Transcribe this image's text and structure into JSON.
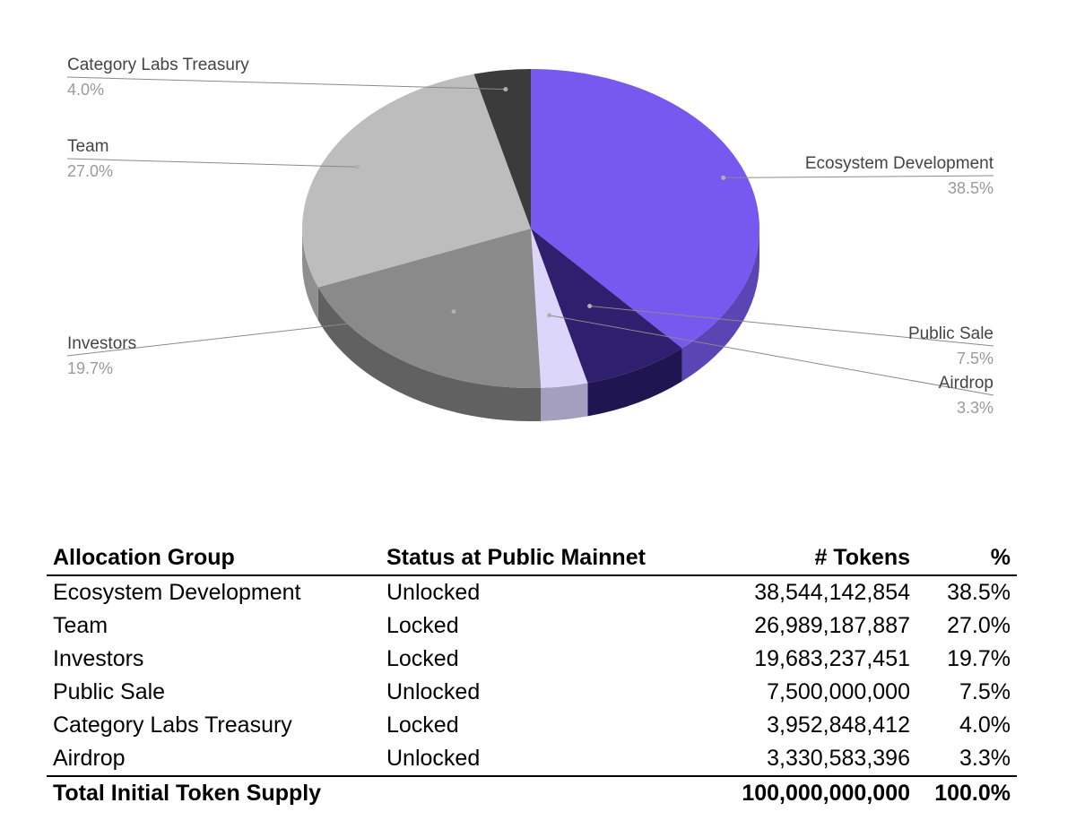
{
  "chart_data": {
    "type": "pie",
    "title": "",
    "unit": "%",
    "slices": [
      {
        "label": "Ecosystem Development",
        "value": 38.5,
        "value_label": "38.5%",
        "color": "#7859ef",
        "side_color": "#5b44b4"
      },
      {
        "label": "Public Sale",
        "value": 7.5,
        "value_label": "7.5%",
        "color": "#2f1f6e",
        "side_color": "#1f1550"
      },
      {
        "label": "Airdrop",
        "value": 3.3,
        "value_label": "3.3%",
        "color": "#dcd6fa",
        "side_color": "#a59fbf"
      },
      {
        "label": "Investors",
        "value": 19.7,
        "value_label": "19.7%",
        "color": "#8a8a8a",
        "side_color": "#616161"
      },
      {
        "label": "Team",
        "value": 27.0,
        "value_label": "27.0%",
        "color": "#bdbdbd",
        "side_color": "#8f8f8f"
      },
      {
        "label": "Category Labs Treasury",
        "value": 4.0,
        "value_label": "4.0%",
        "color": "#3b3b3b",
        "side_color": "#262626"
      }
    ]
  },
  "table": {
    "headers": {
      "group": "Allocation Group",
      "status": "Status at Public Mainnet",
      "tokens": "# Tokens",
      "pct": "%"
    },
    "rows": [
      {
        "group": "Ecosystem Development",
        "status": "Unlocked",
        "tokens": "38,544,142,854",
        "pct": "38.5%"
      },
      {
        "group": "Team",
        "status": "Locked",
        "tokens": "26,989,187,887",
        "pct": "27.0%"
      },
      {
        "group": "Investors",
        "status": "Locked",
        "tokens": "19,683,237,451",
        "pct": "19.7%"
      },
      {
        "group": "Public Sale",
        "status": "Unlocked",
        "tokens": "7,500,000,000",
        "pct": "7.5%"
      },
      {
        "group": "Category Labs Treasury",
        "status": "Locked",
        "tokens": "3,952,848,412",
        "pct": "4.0%"
      },
      {
        "group": "Airdrop",
        "status": "Unlocked",
        "tokens": "3,330,583,396",
        "pct": "3.3%"
      }
    ],
    "total": {
      "group": "Total Initial Token Supply",
      "tokens": "100,000,000,000",
      "pct": "100.0%"
    }
  }
}
